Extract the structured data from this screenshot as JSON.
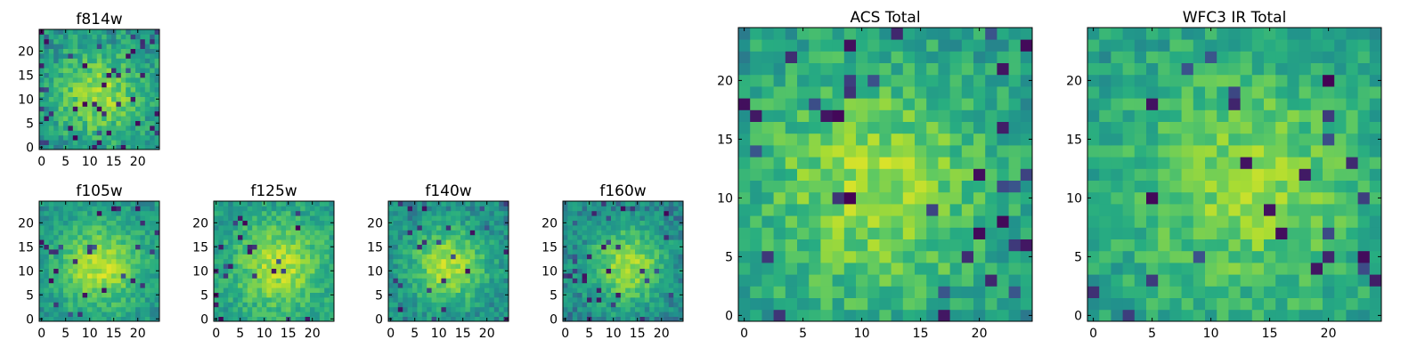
{
  "figure": {
    "caption": ""
  },
  "colormap": [
    "#440154",
    "#3b528b",
    "#21918c",
    "#27ad81",
    "#5ec962",
    "#aadc32",
    "#fde725"
  ],
  "chart_data": [
    {
      "type": "heatmap",
      "title": "f814w",
      "grid_size": 25,
      "xticks": [
        0,
        5,
        10,
        15,
        20
      ],
      "yticks": [
        0,
        5,
        10,
        15,
        20
      ],
      "xlim": [
        0,
        25
      ],
      "ylim": [
        0,
        25
      ],
      "seed": 11,
      "peak": [
        12,
        11
      ],
      "sigma": 6.5,
      "amp": 0.42,
      "base": 0.36,
      "noise": 0.34,
      "dark_frac": 0.07
    },
    {
      "type": "heatmap",
      "title": "f105w",
      "grid_size": 25,
      "xticks": [
        0,
        5,
        10,
        15,
        20
      ],
      "yticks": [
        0,
        5,
        10,
        15,
        20
      ],
      "xlim": [
        0,
        25
      ],
      "ylim": [
        0,
        25
      ],
      "seed": 23,
      "peak": [
        12,
        11
      ],
      "sigma": 6.0,
      "amp": 0.48,
      "base": 0.38,
      "noise": 0.26,
      "dark_frac": 0.04
    },
    {
      "type": "heatmap",
      "title": "f125w",
      "grid_size": 25,
      "xticks": [
        0,
        5,
        10,
        15,
        20
      ],
      "yticks": [
        0,
        5,
        10,
        15,
        20
      ],
      "xlim": [
        0,
        25
      ],
      "ylim": [
        0,
        25
      ],
      "seed": 37,
      "peak": [
        13,
        11
      ],
      "sigma": 6.5,
      "amp": 0.45,
      "base": 0.4,
      "noise": 0.28,
      "dark_frac": 0.04
    },
    {
      "type": "heatmap",
      "title": "f140w",
      "grid_size": 25,
      "xticks": [
        0,
        5,
        10,
        15,
        20
      ],
      "yticks": [
        0,
        5,
        10,
        15,
        20
      ],
      "xlim": [
        0,
        25
      ],
      "ylim": [
        0,
        25
      ],
      "seed": 41,
      "peak": [
        12,
        11
      ],
      "sigma": 5.5,
      "amp": 0.5,
      "base": 0.34,
      "noise": 0.27,
      "dark_frac": 0.06
    },
    {
      "type": "heatmap",
      "title": "f160w",
      "grid_size": 25,
      "xticks": [
        0,
        5,
        10,
        15,
        20
      ],
      "yticks": [
        0,
        5,
        10,
        15,
        20
      ],
      "xlim": [
        0,
        25
      ],
      "ylim": [
        0,
        25
      ],
      "seed": 53,
      "peak": [
        13,
        11
      ],
      "sigma": 5.5,
      "amp": 0.5,
      "base": 0.32,
      "noise": 0.28,
      "dark_frac": 0.07
    },
    {
      "type": "heatmap",
      "title": "ACS Total",
      "grid_size": 25,
      "xticks": [
        0,
        5,
        10,
        15,
        20
      ],
      "yticks": [
        0,
        5,
        10,
        15,
        20
      ],
      "xlim": [
        0,
        25
      ],
      "ylim": [
        0,
        25
      ],
      "seed": 67,
      "peak": [
        11,
        11
      ],
      "sigma": 7.0,
      "amp": 0.4,
      "base": 0.4,
      "noise": 0.32,
      "dark_frac": 0.05
    },
    {
      "type": "heatmap",
      "title": "WFC3 IR Total",
      "grid_size": 25,
      "xticks": [
        0,
        5,
        10,
        15,
        20
      ],
      "yticks": [
        0,
        5,
        10,
        15,
        20
      ],
      "xlim": [
        0,
        25
      ],
      "ylim": [
        0,
        25
      ],
      "seed": 79,
      "peak": [
        13,
        11
      ],
      "sigma": 7.0,
      "amp": 0.34,
      "base": 0.42,
      "noise": 0.3,
      "dark_frac": 0.04
    }
  ]
}
